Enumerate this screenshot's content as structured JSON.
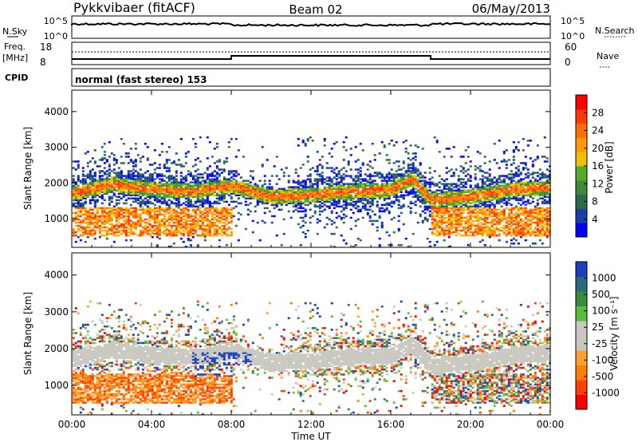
{
  "header": {
    "station": "Pykkvibaer (fitACF)",
    "beam": "Beam 02",
    "date": "06/May/2013"
  },
  "strip_labels": {
    "nsky": "N.Sky",
    "nsky_ticks": [
      "10^5",
      "10^0"
    ],
    "nsearch": "N.Search",
    "freq_line1": "Freq.",
    "freq_line2": "[MHz]",
    "freq_ticks": [
      "18",
      "8"
    ],
    "nave": "Nave",
    "nave_ticks": [
      "60",
      "0"
    ],
    "cpid": "CPID",
    "cpid_text": "normal (fast stereo) 153"
  },
  "colors": {
    "power": [
      "#0000ff",
      "#1a3ea8",
      "#2c6b46",
      "#3f8a3a",
      "#55aa2a",
      "#f0c000",
      "#ff9a00",
      "#ff7000",
      "#ff3a00",
      "#ff0000"
    ],
    "velocity": [
      "#ff0000",
      "#ff4000",
      "#ff8000",
      "#ffa030",
      "#c8c8c0",
      "#c8c8c0",
      "#55c040",
      "#3a8a40",
      "#2a6b80",
      "#1a40c0"
    ]
  },
  "chart_data": [
    {
      "type": "heatmap",
      "name": "power",
      "ylabel": "Slant Range [km]",
      "ylim": [
        200,
        4600
      ],
      "yticks": [
        "1000",
        "2000",
        "3000",
        "4000"
      ],
      "xlim": [
        0,
        24
      ],
      "xticks": [
        "00:00",
        "04:00",
        "08:00",
        "12:00",
        "16:00",
        "20:00",
        "00:00"
      ],
      "colorbar": {
        "label": "Power [dB]",
        "range": [
          0,
          32
        ],
        "ticks": [
          "4",
          "8",
          "12",
          "16",
          "20",
          "24",
          "28"
        ]
      },
      "description_band_center_km": [
        [
          0,
          1700
        ],
        [
          2,
          1950
        ],
        [
          4,
          1800
        ],
        [
          6,
          1750
        ],
        [
          8,
          1900
        ],
        [
          10,
          1600
        ],
        [
          12,
          1650
        ],
        [
          14,
          1750
        ],
        [
          16,
          1800
        ],
        [
          17,
          2100
        ],
        [
          18,
          1500
        ],
        [
          20,
          1600
        ],
        [
          22,
          1800
        ],
        [
          24,
          1850
        ]
      ]
    },
    {
      "type": "heatmap",
      "name": "velocity",
      "ylabel": "Slant Range [km]",
      "ylim": [
        200,
        4600
      ],
      "yticks": [
        "1000",
        "2000",
        "3000",
        "4000"
      ],
      "xlim": [
        0,
        24
      ],
      "xlabel": "Time UT",
      "xticks": [
        "00:00",
        "04:00",
        "08:00",
        "12:00",
        "16:00",
        "20:00",
        "00:00"
      ],
      "colorbar": {
        "label": "Velocity [m s⁻¹]",
        "ticks": [
          "1000",
          "500",
          "100",
          "25",
          "-25",
          "-100",
          "-500",
          "-1000"
        ]
      }
    }
  ]
}
